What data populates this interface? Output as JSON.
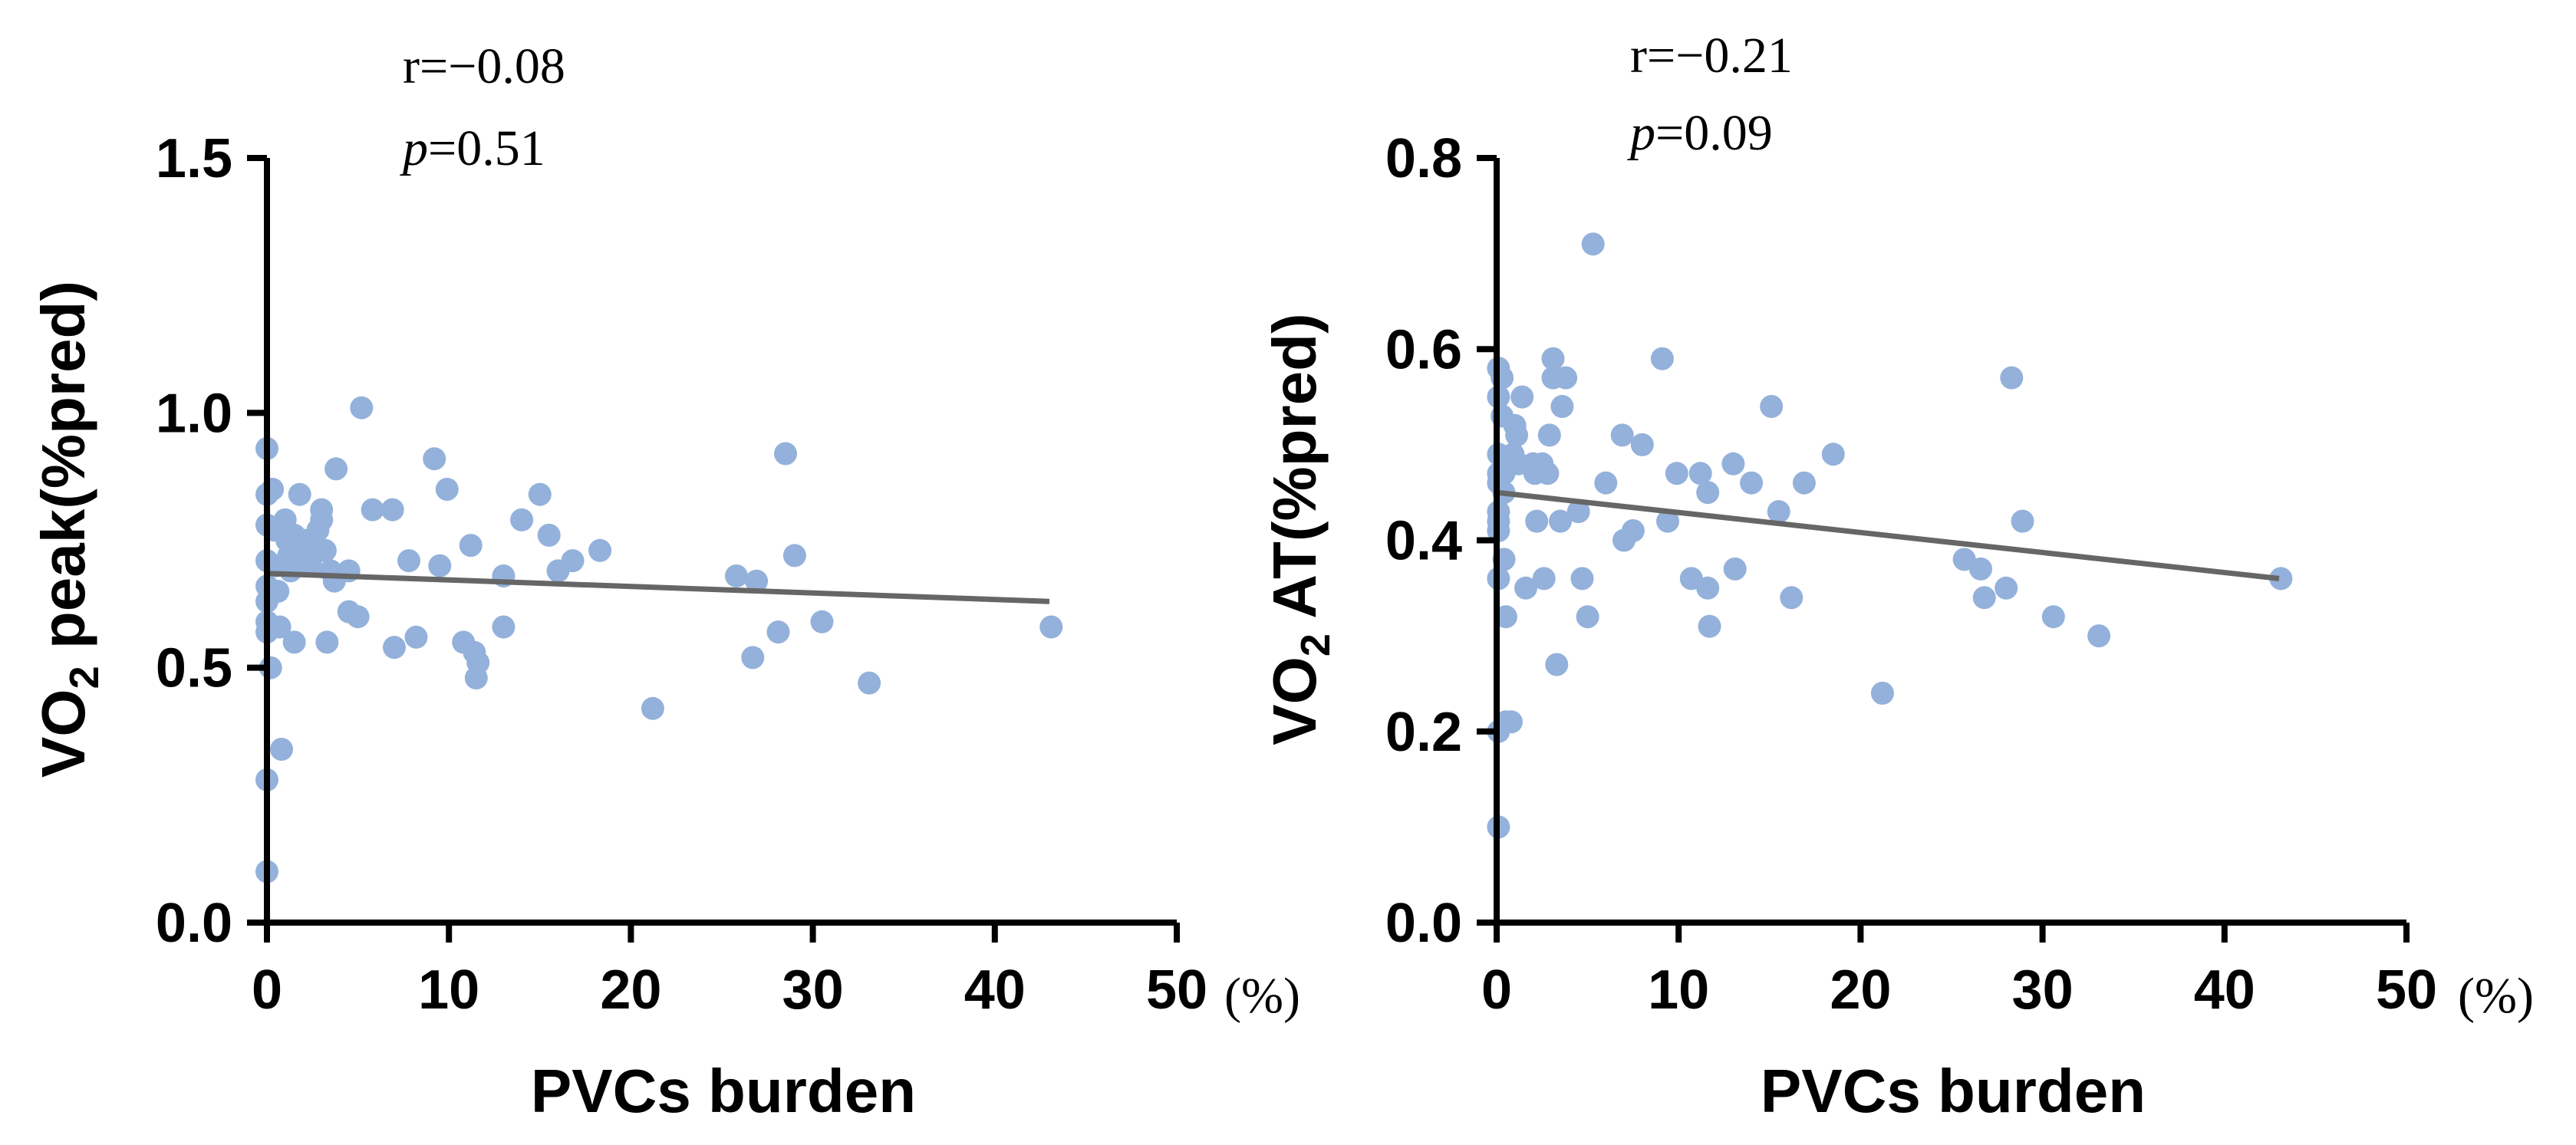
{
  "colors": {
    "point": "#93B1DA",
    "line": "#666666",
    "axis": "#000000",
    "text": "#000000"
  },
  "chart_data": [
    {
      "type": "scatter",
      "title": "",
      "xlabel": "PVCs burden",
      "x_unit": "(%)",
      "ylabel_main": "VO",
      "ylabel_sub": "2",
      "ylabel_rest": " peak(%pred)",
      "xlim": [
        0,
        50
      ],
      "ylim": [
        0,
        1.5
      ],
      "xticks": [
        0,
        10,
        20,
        30,
        40,
        50
      ],
      "xtick_labels": [
        "0",
        "10",
        "20",
        "30",
        "40",
        "50"
      ],
      "yticks": [
        0,
        0.5,
        1.0,
        1.5
      ],
      "ytick_labels": [
        "0.0",
        "0.5",
        "1.0",
        "1.5"
      ],
      "stat_r": "r=−0.08",
      "stat_p_symbol": "p",
      "stat_p_value": "=0.51",
      "regression": {
        "x": [
          0,
          43
        ],
        "y": [
          0.685,
          0.63
        ]
      },
      "points": [
        [
          0.0,
          0.93
        ],
        [
          0.0,
          0.84
        ],
        [
          0.0,
          0.78
        ],
        [
          0.0,
          0.71
        ],
        [
          0.0,
          0.66
        ],
        [
          0.0,
          0.63
        ],
        [
          0.0,
          0.59
        ],
        [
          0.0,
          0.57
        ],
        [
          0.2,
          0.5
        ],
        [
          0.0,
          0.28
        ],
        [
          0.0,
          0.1
        ],
        [
          0.3,
          0.85
        ],
        [
          0.4,
          0.77
        ],
        [
          0.5,
          0.7
        ],
        [
          0.6,
          0.65
        ],
        [
          0.7,
          0.58
        ],
        [
          0.8,
          0.34
        ],
        [
          1.0,
          0.79
        ],
        [
          1.1,
          0.75
        ],
        [
          1.2,
          0.72
        ],
        [
          1.3,
          0.69
        ],
        [
          1.5,
          0.76
        ],
        [
          1.6,
          0.74
        ],
        [
          1.7,
          0.71
        ],
        [
          1.5,
          0.55
        ],
        [
          1.8,
          0.84
        ],
        [
          2.0,
          0.75
        ],
        [
          2.2,
          0.73
        ],
        [
          2.4,
          0.7
        ],
        [
          2.5,
          0.72
        ],
        [
          2.7,
          0.74
        ],
        [
          2.8,
          0.77
        ],
        [
          3.0,
          0.79
        ],
        [
          3.0,
          0.81
        ],
        [
          3.2,
          0.73
        ],
        [
          3.3,
          0.55
        ],
        [
          3.5,
          0.69
        ],
        [
          3.7,
          0.67
        ],
        [
          3.8,
          0.89
        ],
        [
          4.5,
          0.69
        ],
        [
          4.5,
          0.61
        ],
        [
          5.0,
          0.6
        ],
        [
          5.2,
          1.01
        ],
        [
          5.8,
          0.81
        ],
        [
          6.9,
          0.81
        ],
        [
          7.0,
          0.54
        ],
        [
          7.8,
          0.71
        ],
        [
          8.2,
          0.56
        ],
        [
          9.2,
          0.91
        ],
        [
          9.5,
          0.7
        ],
        [
          9.9,
          0.85
        ],
        [
          10.8,
          0.55
        ],
        [
          11.2,
          0.74
        ],
        [
          11.4,
          0.53
        ],
        [
          11.5,
          0.48
        ],
        [
          11.6,
          0.51
        ],
        [
          13.0,
          0.68
        ],
        [
          13.0,
          0.58
        ],
        [
          14.0,
          0.79
        ],
        [
          15.0,
          0.84
        ],
        [
          15.5,
          0.76
        ],
        [
          16.0,
          0.69
        ],
        [
          16.8,
          0.71
        ],
        [
          18.3,
          0.73
        ],
        [
          21.2,
          0.42
        ],
        [
          25.8,
          0.68
        ],
        [
          26.7,
          0.52
        ],
        [
          26.9,
          0.67
        ],
        [
          28.1,
          0.57
        ],
        [
          28.5,
          0.92
        ],
        [
          29.0,
          0.72
        ],
        [
          30.5,
          0.59
        ],
        [
          33.1,
          0.47
        ],
        [
          43.1,
          0.58
        ]
      ]
    },
    {
      "type": "scatter",
      "title": "",
      "xlabel": "PVCs burden",
      "x_unit": "(%)",
      "ylabel_main": "VO",
      "ylabel_sub": "2",
      "ylabel_rest": " AT(%pred)",
      "xlim": [
        0,
        50
      ],
      "ylim": [
        0,
        0.8
      ],
      "xticks": [
        0,
        10,
        20,
        30,
        40,
        50
      ],
      "xtick_labels": [
        "0",
        "10",
        "20",
        "30",
        "40",
        "50"
      ],
      "yticks": [
        0,
        0.2,
        0.4,
        0.6,
        0.8
      ],
      "ytick_labels": [
        "0.0",
        "0.2",
        "0.4",
        "0.6",
        "0.8"
      ],
      "stat_r": "r=−0.21",
      "stat_p_symbol": "p",
      "stat_p_value": "=0.09",
      "regression": {
        "x": [
          0,
          43
        ],
        "y": [
          0.45,
          0.36
        ]
      },
      "points": [
        [
          0.1,
          0.58
        ],
        [
          0.1,
          0.55
        ],
        [
          0.1,
          0.49
        ],
        [
          0.1,
          0.47
        ],
        [
          0.1,
          0.46
        ],
        [
          0.1,
          0.43
        ],
        [
          0.1,
          0.42
        ],
        [
          0.1,
          0.41
        ],
        [
          0.1,
          0.36
        ],
        [
          0.1,
          0.2
        ],
        [
          0.1,
          0.1
        ],
        [
          0.3,
          0.57
        ],
        [
          0.3,
          0.53
        ],
        [
          0.4,
          0.47
        ],
        [
          0.4,
          0.45
        ],
        [
          0.4,
          0.38
        ],
        [
          0.5,
          0.32
        ],
        [
          0.5,
          0.21
        ],
        [
          0.8,
          0.21
        ],
        [
          0.9,
          0.49
        ],
        [
          1.0,
          0.52
        ],
        [
          1.1,
          0.51
        ],
        [
          1.2,
          0.48
        ],
        [
          1.4,
          0.55
        ],
        [
          1.6,
          0.35
        ],
        [
          2.0,
          0.48
        ],
        [
          2.1,
          0.47
        ],
        [
          2.2,
          0.42
        ],
        [
          2.5,
          0.48
        ],
        [
          2.6,
          0.36
        ],
        [
          2.8,
          0.47
        ],
        [
          2.9,
          0.51
        ],
        [
          3.1,
          0.59
        ],
        [
          3.1,
          0.57
        ],
        [
          3.3,
          0.27
        ],
        [
          3.5,
          0.42
        ],
        [
          3.6,
          0.54
        ],
        [
          3.8,
          0.57
        ],
        [
          4.5,
          0.43
        ],
        [
          4.7,
          0.36
        ],
        [
          5.0,
          0.32
        ],
        [
          5.3,
          0.71
        ],
        [
          6.0,
          0.46
        ],
        [
          6.9,
          0.51
        ],
        [
          7.0,
          0.4
        ],
        [
          7.5,
          0.41
        ],
        [
          8.0,
          0.5
        ],
        [
          9.1,
          0.59
        ],
        [
          9.4,
          0.42
        ],
        [
          9.9,
          0.47
        ],
        [
          10.7,
          0.36
        ],
        [
          11.2,
          0.47
        ],
        [
          11.6,
          0.45
        ],
        [
          11.6,
          0.35
        ],
        [
          11.7,
          0.31
        ],
        [
          13.0,
          0.48
        ],
        [
          13.1,
          0.37
        ],
        [
          14.0,
          0.46
        ],
        [
          15.1,
          0.54
        ],
        [
          15.5,
          0.43
        ],
        [
          16.2,
          0.34
        ],
        [
          16.9,
          0.46
        ],
        [
          18.5,
          0.49
        ],
        [
          21.2,
          0.24
        ],
        [
          25.7,
          0.38
        ],
        [
          26.6,
          0.37
        ],
        [
          26.8,
          0.34
        ],
        [
          28.0,
          0.35
        ],
        [
          28.3,
          0.57
        ],
        [
          28.9,
          0.42
        ],
        [
          30.6,
          0.32
        ],
        [
          33.1,
          0.3
        ],
        [
          43.1,
          0.36
        ]
      ]
    }
  ]
}
